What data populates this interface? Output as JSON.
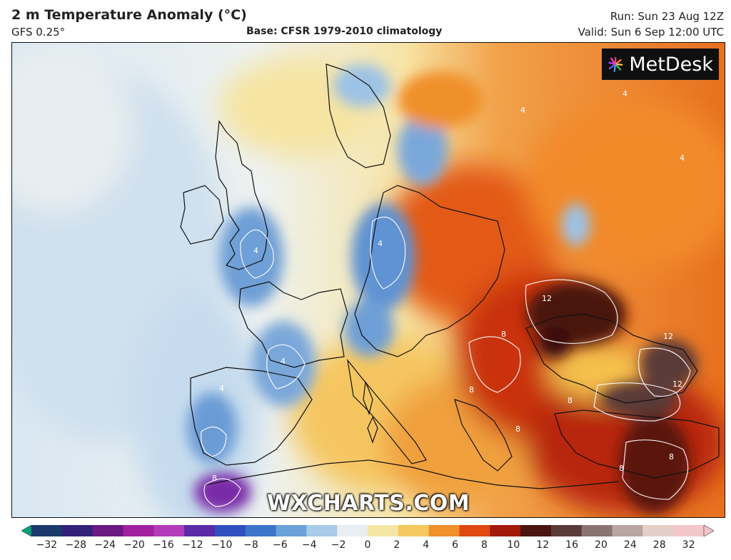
{
  "header": {
    "title": "2 m Temperature Anomaly (°C)",
    "model": "GFS 0.25°",
    "base": "Base: CFSR 1979-2010 climatology",
    "run": "Run: Sun 23 Aug 12Z",
    "valid": "Valid: Sun 6 Sep 12:00 UTC"
  },
  "branding": {
    "logo_text": "MetDesk",
    "watermark": "WXCHARTS.COM"
  },
  "map": {
    "region": "Europe",
    "contour_labels": [
      "4",
      "4",
      "4",
      "4",
      "4",
      "4",
      "4",
      "8",
      "8",
      "8",
      "8",
      "8",
      "8",
      "12",
      "12",
      "12",
      "8"
    ]
  },
  "legend": {
    "ticks": [
      "-32",
      "-28",
      "-24",
      "-20",
      "-16",
      "-12",
      "-10",
      "-8",
      "-6",
      "-4",
      "-2",
      "0",
      "2",
      "4",
      "6",
      "8",
      "10",
      "12",
      "16",
      "20",
      "24",
      "28",
      "32"
    ],
    "colors": [
      "#00a37a",
      "#1a3a6b",
      "#33227a",
      "#6a1a82",
      "#a020a0",
      "#b33ab8",
      "#5a2aa8",
      "#3050c0",
      "#3c74c8",
      "#6aa2da",
      "#a8cbe8",
      "#e8eef2",
      "#f6e6a6",
      "#f5c860",
      "#f0902a",
      "#de4a12",
      "#a21a08",
      "#4a1410",
      "#5a3a38",
      "#8a7370",
      "#b9a6a2",
      "#e5cfc8",
      "#f3c6c9"
    ]
  }
}
